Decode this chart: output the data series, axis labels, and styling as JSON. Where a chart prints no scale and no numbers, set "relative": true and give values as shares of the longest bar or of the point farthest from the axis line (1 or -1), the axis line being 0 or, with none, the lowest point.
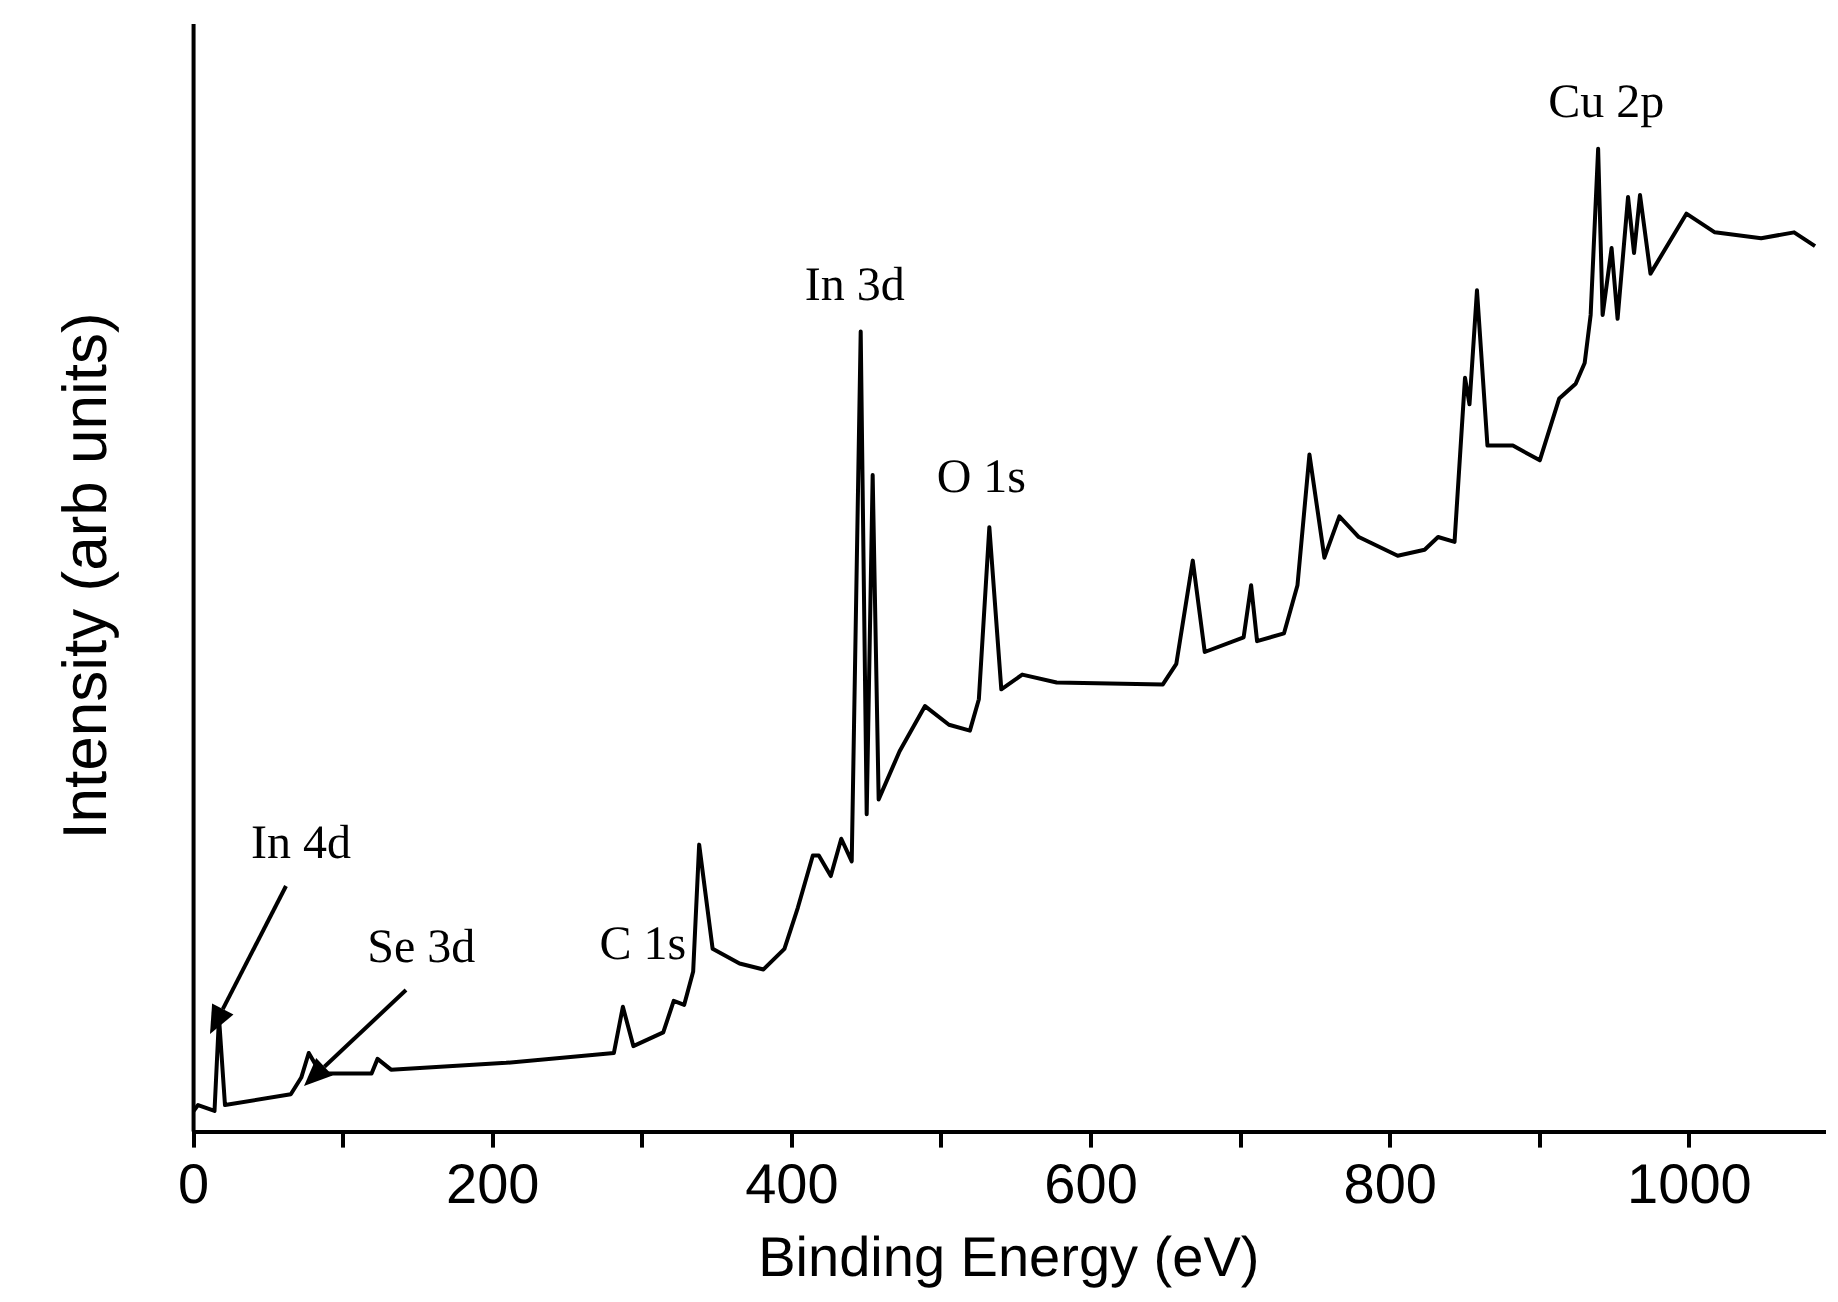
{
  "chart_data": {
    "type": "line",
    "relative": true,
    "xlabel": "Binding Energy (eV)",
    "ylabel": "Intensity (arb units)",
    "xlim": [
      0,
      1090
    ],
    "xticks": [
      0,
      {
        "value": 100,
        "label": null
      },
      200,
      {
        "value": 300,
        "label": null
      },
      400,
      {
        "value": 500,
        "label": null
      },
      600,
      {
        "value": 700,
        "label": null
      },
      800,
      {
        "value": 900,
        "label": null
      },
      1000
    ],
    "grid": false,
    "legend": false,
    "marker": "none",
    "line_style": "solid",
    "x": [
      0,
      3,
      14,
      17,
      21,
      65,
      72,
      77,
      85,
      119,
      123,
      132,
      209,
      281,
      287,
      294,
      314,
      321,
      328,
      334,
      338,
      347,
      365,
      381,
      395,
      404,
      414,
      418,
      426,
      433,
      440,
      446,
      450,
      454,
      458,
      472,
      489,
      505,
      519,
      525,
      532,
      540,
      554,
      577,
      648,
      657,
      668,
      676,
      702,
      707,
      711,
      729,
      738,
      746,
      756,
      766,
      779,
      805,
      823,
      832,
      843,
      850,
      853,
      858,
      865,
      882,
      900,
      913,
      924,
      930,
      934,
      939,
      942,
      948,
      952,
      959,
      963,
      967,
      974,
      998,
      1017,
      1048,
      1070,
      1084
    ],
    "series": [
      {
        "color": "#000000",
        "values": [
          0.021,
          0.027,
          0.021,
          0.116,
          0.027,
          0.038,
          0.055,
          0.08,
          0.059,
          0.059,
          0.074,
          0.063,
          0.07,
          0.08,
          0.127,
          0.087,
          0.101,
          0.133,
          0.129,
          0.163,
          0.292,
          0.186,
          0.171,
          0.165,
          0.186,
          0.228,
          0.281,
          0.281,
          0.26,
          0.298,
          0.275,
          0.814,
          0.323,
          0.668,
          0.338,
          0.387,
          0.433,
          0.414,
          0.408,
          0.44,
          0.615,
          0.45,
          0.465,
          0.457,
          0.455,
          0.476,
          0.581,
          0.488,
          0.503,
          0.556,
          0.499,
          0.507,
          0.556,
          0.689,
          0.584,
          0.626,
          0.605,
          0.586,
          0.592,
          0.605,
          0.6,
          0.767,
          0.74,
          0.856,
          0.698,
          0.698,
          0.683,
          0.746,
          0.761,
          0.782,
          0.831,
          1,
          0.831,
          0.899,
          0.827,
          0.951,
          0.894,
          0.953,
          0.873,
          0.934,
          0.915,
          0.909,
          0.915,
          0.901
        ]
      }
    ],
    "annotations": [
      {
        "text": "In 4d",
        "x": 17,
        "y": 0.116
      },
      {
        "text": "Se 3d",
        "x": 72,
        "y": 0.055
      },
      {
        "text": "C 1s",
        "x": 287,
        "y": 0.127
      },
      {
        "text": "In 3d",
        "x": 446,
        "y": 0.814
      },
      {
        "text": "O 1s",
        "x": 532,
        "y": 0.615
      },
      {
        "text": "Cu 2p",
        "x": 939,
        "y": 1
      }
    ]
  }
}
